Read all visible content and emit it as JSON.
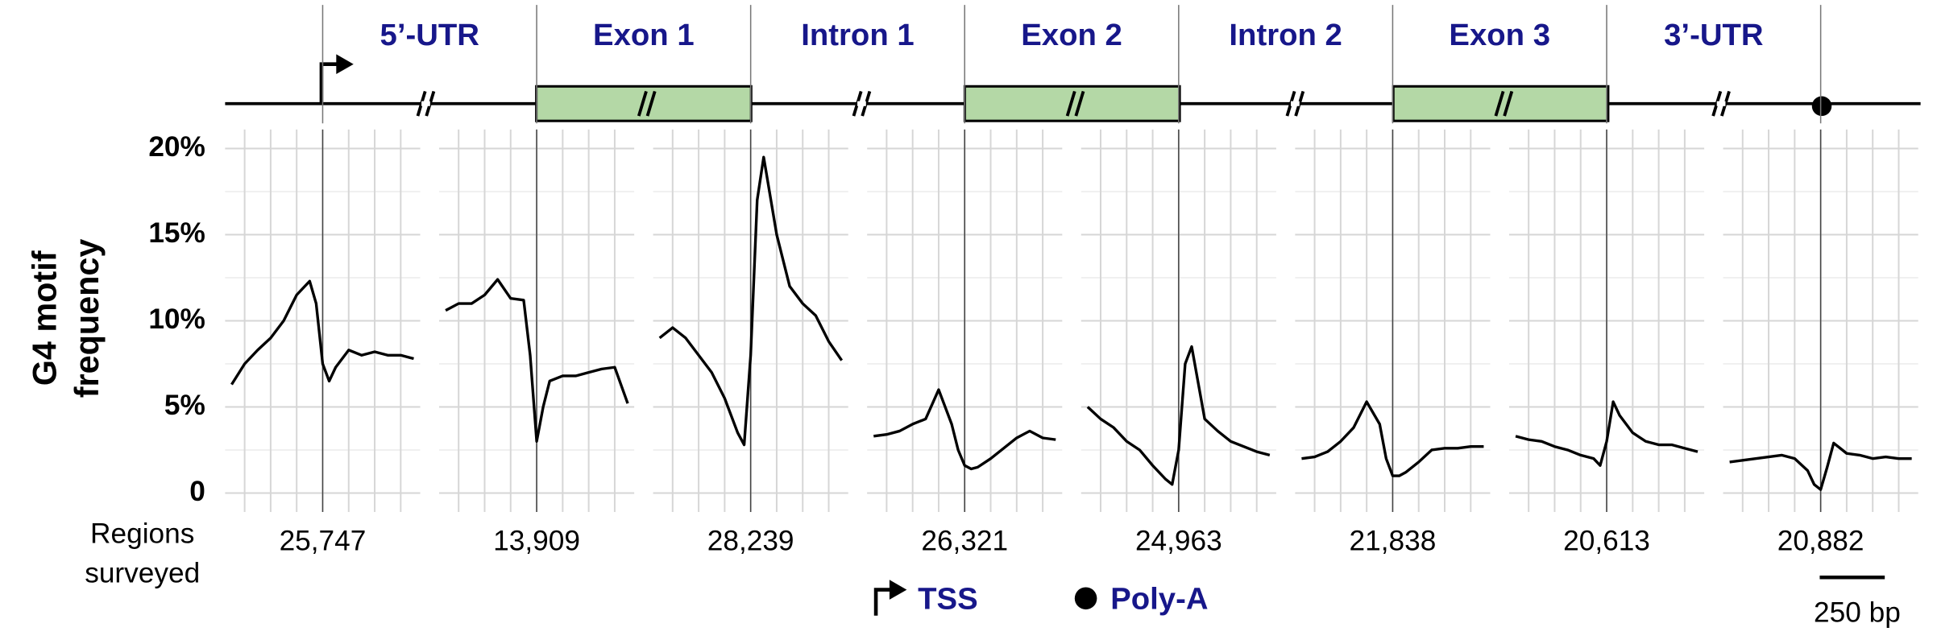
{
  "diagram": {
    "regions": [
      "5’-UTR",
      "Exon 1",
      "Intron 1",
      "Exon 2",
      "Intron 2",
      "Exon 3",
      "3’-UTR"
    ],
    "legend": {
      "tss": "TSS",
      "polya": "Poly-A"
    }
  },
  "chart_data": {
    "type": "line",
    "y_label": [
      "G4 motif",
      "frequency"
    ],
    "count_label": [
      "Regions",
      "surveyed"
    ],
    "x": [
      -350,
      -300,
      -250,
      -200,
      -150,
      -100,
      -50,
      -25,
      0,
      25,
      50,
      100,
      150,
      200,
      250,
      300,
      350
    ],
    "xlim": [
      -375,
      375
    ],
    "xticks": [
      -300,
      -200,
      -100,
      0,
      100,
      200,
      300
    ],
    "ylim": [
      -1.1,
      21.1
    ],
    "yticks": [
      {
        "value": 20,
        "label": "20%"
      },
      {
        "value": 15,
        "label": "15%"
      },
      {
        "value": 10,
        "label": "10%"
      },
      {
        "value": 5,
        "label": "5%"
      },
      0
    ],
    "yminor": [
      2.5,
      7.5,
      12.5,
      17.5
    ],
    "grid": true,
    "color": "#000000",
    "scale_bar": {
      "value": 250,
      "label": "250 bp"
    },
    "panels": [
      {
        "label": "25,747",
        "values": [
          6.3,
          7.5,
          8.3,
          9.0,
          10.0,
          11.5,
          12.3,
          11.0,
          7.5,
          6.5,
          7.3,
          8.3,
          8.0,
          8.2,
          8.0,
          8.0,
          7.8
        ]
      },
      {
        "label": "13,909",
        "values": [
          10.6,
          11.0,
          11.0,
          11.5,
          12.4,
          11.3,
          11.2,
          8.0,
          3.0,
          5.0,
          6.5,
          6.8,
          6.8,
          7.0,
          7.2,
          7.3,
          5.2
        ]
      },
      {
        "label": "28,239",
        "values": [
          9.0,
          9.6,
          9.0,
          8.0,
          7.0,
          5.5,
          3.5,
          2.8,
          8.0,
          17.0,
          19.5,
          15.0,
          12.0,
          11.0,
          10.3,
          8.8,
          7.7
        ]
      },
      {
        "label": "26,321",
        "values": [
          3.3,
          3.4,
          3.6,
          4.0,
          4.3,
          6.0,
          4.0,
          2.5,
          1.6,
          1.4,
          1.5,
          2.0,
          2.6,
          3.2,
          3.6,
          3.2,
          3.1
        ]
      },
      {
        "label": "24,963",
        "values": [
          5.0,
          4.3,
          3.8,
          3.0,
          2.5,
          1.6,
          0.8,
          0.5,
          2.5,
          7.5,
          8.5,
          4.3,
          3.6,
          3.0,
          2.7,
          2.4,
          2.2
        ]
      },
      {
        "label": "21,838",
        "values": [
          2.0,
          2.1,
          2.4,
          3.0,
          3.8,
          5.3,
          4.0,
          2.0,
          1.0,
          1.0,
          1.2,
          1.8,
          2.5,
          2.6,
          2.6,
          2.7,
          2.7
        ]
      },
      {
        "label": "20,613",
        "values": [
          3.3,
          3.1,
          3.0,
          2.7,
          2.5,
          2.2,
          2.0,
          1.6,
          3.0,
          5.3,
          4.5,
          3.5,
          3.0,
          2.8,
          2.8,
          2.6,
          2.4
        ]
      },
      {
        "label": "20,882",
        "values": [
          1.8,
          1.9,
          2.0,
          2.1,
          2.2,
          2.0,
          1.3,
          0.5,
          0.2,
          1.5,
          2.9,
          2.3,
          2.2,
          2.0,
          2.1,
          2.0,
          2.0
        ]
      }
    ]
  }
}
